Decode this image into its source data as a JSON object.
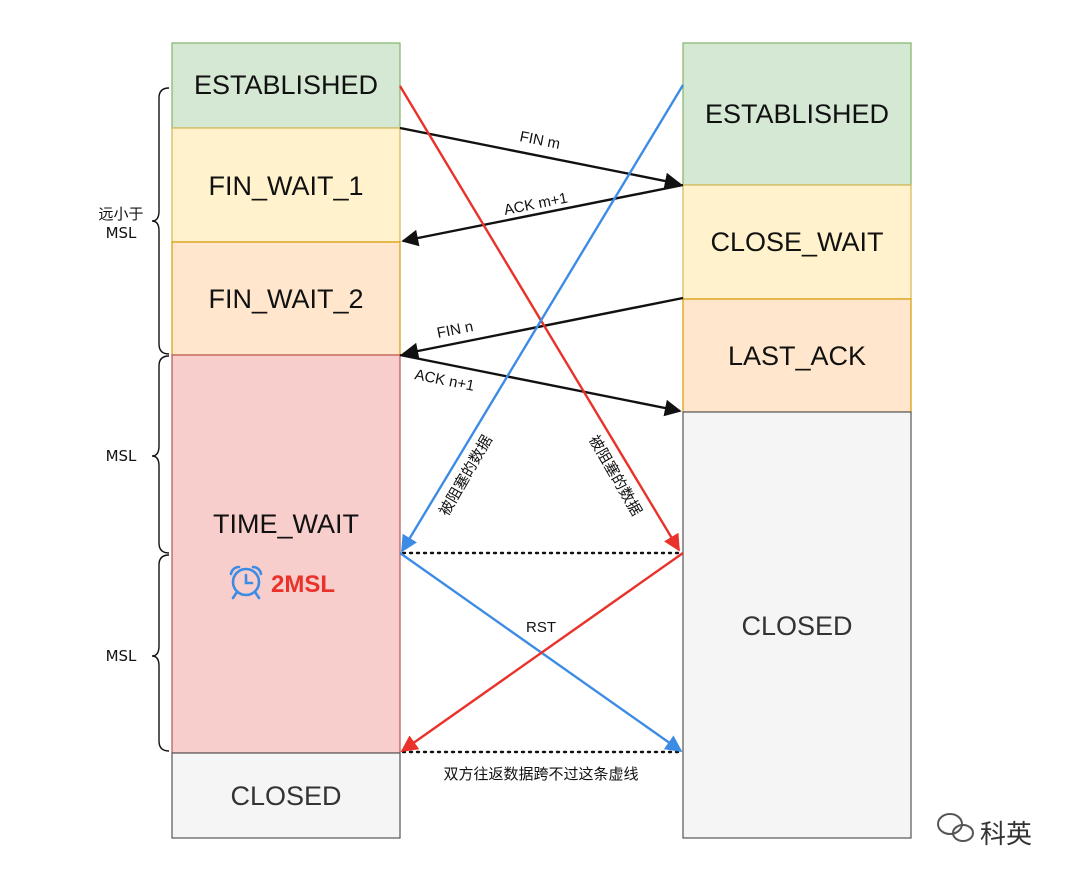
{
  "client": {
    "states": [
      {
        "label": "ESTABLISHED",
        "fill": "#d5e8d4",
        "stroke": "#82b366"
      },
      {
        "label": "FIN_WAIT_1",
        "fill": "#fff2cc",
        "stroke": "#d6b656"
      },
      {
        "label": "FIN_WAIT_2",
        "fill": "#ffe6cc",
        "stroke": "#d79b00"
      },
      {
        "label": "TIME_WAIT",
        "fill": "#f8cecc",
        "stroke": "#b85450"
      },
      {
        "label": "CLOSED",
        "fill": "#f5f5f5",
        "stroke": "#555555"
      }
    ],
    "timer_label": "2MSL"
  },
  "server": {
    "states": [
      {
        "label": "ESTABLISHED",
        "fill": "#d5e8d4",
        "stroke": "#82b366"
      },
      {
        "label": "CLOSE_WAIT",
        "fill": "#fff2cc",
        "stroke": "#d6b656"
      },
      {
        "label": "LAST_ACK",
        "fill": "#ffe6cc",
        "stroke": "#d79b00"
      },
      {
        "label": "CLOSED",
        "fill": "#f5f5f5",
        "stroke": "#555555"
      }
    ]
  },
  "messages": {
    "fin_m": "FIN m",
    "ack_m1": "ACK m+1",
    "fin_n": "FIN n",
    "ack_n1": "ACK n+1",
    "rst": "RST",
    "blocked_left": "被阻塞的数据",
    "blocked_right": "被阻塞的数据",
    "dotted_note": "双方往返数据跨不过这条虚线"
  },
  "durations": {
    "far_less": "远小于",
    "far_less_msl": "MSL",
    "msl_1": "MSL",
    "msl_2": "MSL"
  },
  "watermark": "科英",
  "colors": {
    "arrow_black": "#111111",
    "arrow_red": "#e8322a",
    "arrow_blue": "#3c8ce6",
    "clock_blue": "#3c8ce6"
  }
}
